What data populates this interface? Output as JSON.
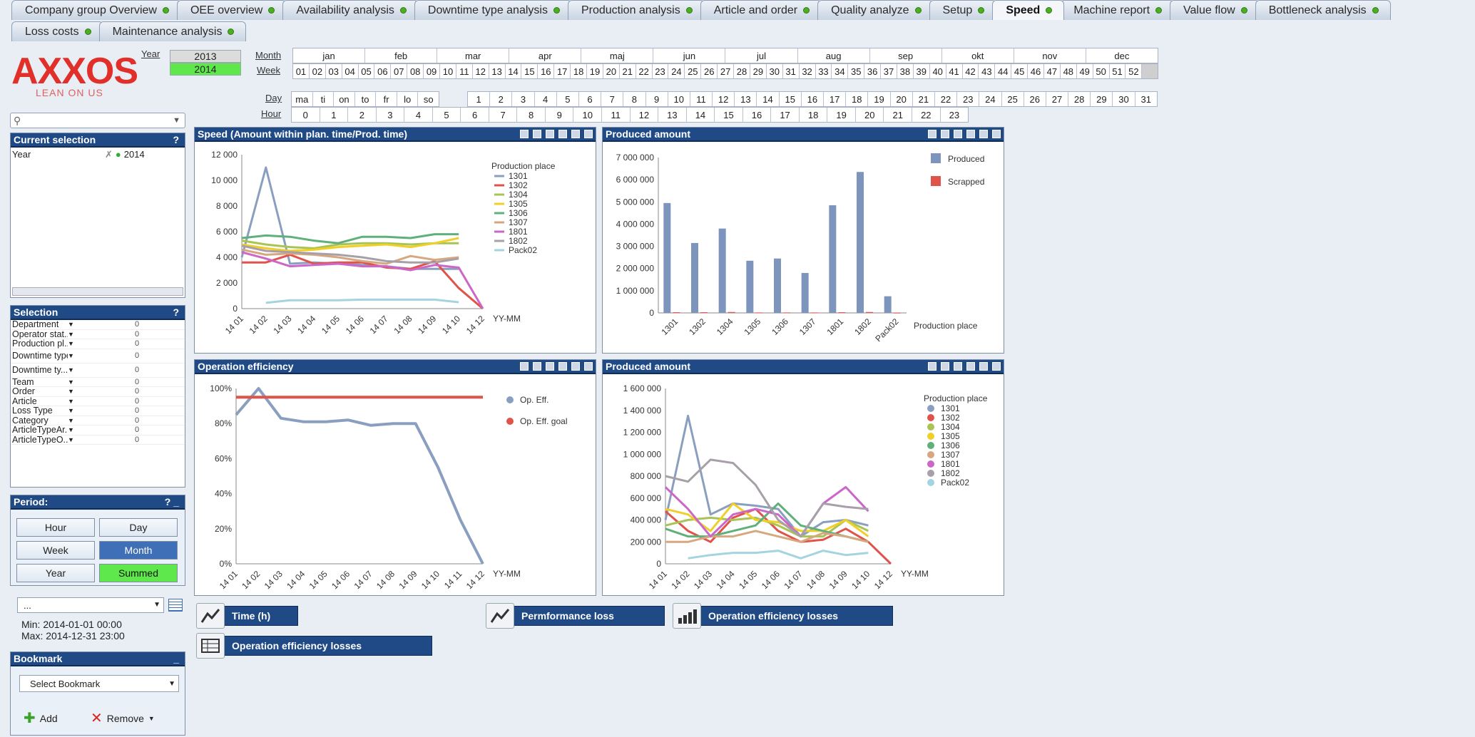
{
  "tabs_row1": [
    {
      "label": "Company group Overview",
      "active": false
    },
    {
      "label": "OEE overview",
      "active": false
    },
    {
      "label": "Availability analysis",
      "active": false
    },
    {
      "label": "Downtime type analysis",
      "active": false
    },
    {
      "label": "Production analysis",
      "active": false
    },
    {
      "label": "Article and order",
      "active": false
    },
    {
      "label": "Quality analyze",
      "active": false
    },
    {
      "label": "Setup",
      "active": false
    },
    {
      "label": "Speed",
      "active": true
    },
    {
      "label": "Machine report",
      "active": false
    },
    {
      "label": "Value flow",
      "active": false
    },
    {
      "label": "Bottleneck analysis",
      "active": false
    }
  ],
  "tabs_row2": [
    {
      "label": "Loss costs"
    },
    {
      "label": "Maintenance analysis"
    }
  ],
  "logo": {
    "text": "AXXOS",
    "tagline": "LEAN ON US"
  },
  "filters": {
    "year_label": "Year",
    "years": [
      "2013",
      "2014"
    ],
    "selected_year": "2014",
    "month_label": "Month",
    "months": [
      "jan",
      "feb",
      "mar",
      "apr",
      "maj",
      "jun",
      "jul",
      "aug",
      "sep",
      "okt",
      "nov",
      "dec"
    ],
    "week_label": "Week",
    "weeks": [
      "01",
      "02",
      "03",
      "04",
      "05",
      "06",
      "07",
      "08",
      "09",
      "10",
      "11",
      "12",
      "13",
      "14",
      "15",
      "16",
      "17",
      "18",
      "19",
      "20",
      "21",
      "22",
      "23",
      "24",
      "25",
      "26",
      "27",
      "28",
      "29",
      "30",
      "31",
      "32",
      "33",
      "34",
      "35",
      "36",
      "37",
      "38",
      "39",
      "40",
      "41",
      "42",
      "43",
      "44",
      "45",
      "46",
      "47",
      "48",
      "49",
      "50",
      "51",
      "52",
      ""
    ],
    "day_label": "Day",
    "weekdays": [
      "ma",
      "ti",
      "on",
      "to",
      "fr",
      "lo",
      "so"
    ],
    "days": [
      "1",
      "2",
      "3",
      "4",
      "5",
      "6",
      "7",
      "8",
      "9",
      "10",
      "11",
      "12",
      "13",
      "14",
      "15",
      "16",
      "17",
      "18",
      "19",
      "20",
      "21",
      "22",
      "23",
      "24",
      "25",
      "26",
      "27",
      "28",
      "29",
      "30",
      "31"
    ],
    "hour_label": "Hour",
    "hours": [
      "0",
      "1",
      "2",
      "3",
      "4",
      "5",
      "6",
      "7",
      "8",
      "9",
      "10",
      "11",
      "12",
      "13",
      "14",
      "15",
      "16",
      "17",
      "18",
      "19",
      "20",
      "21",
      "22",
      "23"
    ]
  },
  "search": {
    "placeholder": ""
  },
  "current_selection": {
    "title": "Current selection",
    "help": "?",
    "field": "Year",
    "value": "2014"
  },
  "selection_panel": {
    "title": "Selection",
    "help": "?",
    "rows": [
      "Department",
      "Operator stat...",
      "Production pl...",
      "Downtime type",
      "Downtime ty...",
      "Team",
      "Order",
      "Article",
      "Loss Type",
      "Category",
      "ArticleTypeAr...",
      "ArticleTypeO..."
    ],
    "placeholder_value": "0"
  },
  "period": {
    "title": "Period:",
    "help": "? _",
    "buttons": [
      "Hour",
      "Day",
      "Week",
      "Month",
      "Year",
      "Summed"
    ],
    "active": "Month",
    "green": "Summed"
  },
  "date_range": {
    "dropdown": "...",
    "min": "Min: 2014-01-01 00:00",
    "max": "Max: 2014-12-31 23:00"
  },
  "bookmark": {
    "title": "Bookmark",
    "select": "Select Bookmark",
    "add": "Add",
    "remove": "Remove"
  },
  "charts": {
    "speed_title": "Speed (Amount within plan. time/Prod. time)",
    "produced_title": "Produced amount",
    "opeff_title": "Operation efficiency",
    "produced2_title": "Produced amount"
  },
  "bottom_buttons": {
    "time": "Time (h)",
    "perf": "Permformance loss",
    "oel1": "Operation efficiency losses",
    "oel2": "Operation efficiency losses"
  },
  "chart_data": [
    {
      "type": "line",
      "title": "Speed (Amount within plan. time/Prod. time)",
      "xlabel": "YY-MM",
      "legend_title": "Production place",
      "x": [
        "14 01",
        "14 02",
        "14 03",
        "14 04",
        "14 05",
        "14 06",
        "14 07",
        "14 08",
        "14 09",
        "14 10",
        "14 12"
      ],
      "ylim": [
        0,
        12000
      ],
      "yticks": [
        0,
        2000,
        4000,
        6000,
        8000,
        10000,
        12000
      ],
      "series": [
        {
          "name": "1301",
          "color": "#8a9fc0",
          "values": [
            4000,
            11000,
            3500,
            3600,
            3500,
            3400,
            3300,
            3100,
            3100,
            3100,
            null
          ]
        },
        {
          "name": "1302",
          "color": "#e0534a",
          "values": [
            3600,
            3600,
            4200,
            3500,
            3600,
            3600,
            3200,
            3100,
            3700,
            1600,
            0
          ]
        },
        {
          "name": "1304",
          "color": "#a9c454",
          "values": [
            5300,
            5000,
            4800,
            4700,
            5000,
            5100,
            5100,
            5000,
            5100,
            5100,
            null
          ]
        },
        {
          "name": "1305",
          "color": "#f0d028",
          "values": [
            5000,
            4700,
            4500,
            4600,
            4800,
            4900,
            5000,
            4800,
            5100,
            5500,
            null
          ]
        },
        {
          "name": "1306",
          "color": "#5fb07a",
          "values": [
            5500,
            5700,
            5600,
            5300,
            5100,
            5600,
            5600,
            5500,
            5800,
            5800,
            null
          ]
        },
        {
          "name": "1307",
          "color": "#d7a780",
          "values": [
            4600,
            4200,
            4300,
            4200,
            4000,
            3700,
            3500,
            4100,
            3800,
            4000,
            null
          ]
        },
        {
          "name": "1801",
          "color": "#cc66c8",
          "values": [
            4400,
            3900,
            3300,
            3400,
            3500,
            3300,
            3300,
            3000,
            3400,
            3200,
            0
          ]
        },
        {
          "name": "1802",
          "color": "#a7a0a8",
          "values": [
            4900,
            4500,
            4400,
            4300,
            4200,
            4000,
            3700,
            3600,
            3600,
            3900,
            null
          ]
        },
        {
          "name": "Pack02",
          "color": "#a3d4e0",
          "values": [
            null,
            450,
            650,
            650,
            650,
            700,
            700,
            700,
            700,
            500,
            null
          ]
        }
      ]
    },
    {
      "type": "bar",
      "title": "Produced amount",
      "xlabel": "Production place",
      "categories": [
        "1301",
        "1302",
        "1304",
        "1305",
        "1306",
        "1307",
        "1801",
        "1802",
        "Pack02"
      ],
      "ylim": [
        0,
        7000000
      ],
      "yticks": [
        0,
        1000000,
        2000000,
        3000000,
        4000000,
        5000000,
        6000000,
        7000000
      ],
      "series": [
        {
          "name": "Produced",
          "color": "#7d95bd",
          "values": [
            4950000,
            3150000,
            3800000,
            2350000,
            2450000,
            1800000,
            4850000,
            6350000,
            750000
          ]
        },
        {
          "name": "Scrapped",
          "color": "#e0534a",
          "values": [
            30000,
            30000,
            40000,
            20000,
            20000,
            20000,
            30000,
            40000,
            10000
          ]
        }
      ]
    },
    {
      "type": "line",
      "title": "Operation efficiency",
      "xlabel": "YY-MM",
      "x": [
        "14 01",
        "14 02",
        "14 03",
        "14 04",
        "14 05",
        "14 06",
        "14 07",
        "14 08",
        "14 09",
        "14 10",
        "14 11",
        "14 12"
      ],
      "ylim": [
        0,
        100
      ],
      "yticks": [
        0,
        20,
        40,
        60,
        80,
        100
      ],
      "yformat": "percent",
      "series": [
        {
          "name": "Op. Eff.",
          "color": "#8a9fc0",
          "values": [
            85,
            100,
            83,
            81,
            81,
            82,
            79,
            80,
            80,
            55,
            25,
            0
          ]
        },
        {
          "name": "Op. Eff. goal",
          "color": "#e0534a",
          "values": [
            95,
            95,
            95,
            95,
            95,
            95,
            95,
            95,
            95,
            95,
            95,
            95
          ]
        }
      ]
    },
    {
      "type": "line",
      "title": "Produced amount",
      "xlabel": "YY-MM",
      "legend_title": "Production place",
      "x": [
        "14 01",
        "14 02",
        "14 03",
        "14 04",
        "14 05",
        "14 06",
        "14 07",
        "14 08",
        "14 09",
        "14 10",
        "14 12"
      ],
      "ylim": [
        0,
        1600000
      ],
      "yticks": [
        0,
        200000,
        400000,
        600000,
        800000,
        1000000,
        1200000,
        1400000,
        1600000
      ],
      "series": [
        {
          "name": "1301",
          "color": "#8a9fc0",
          "values": [
            400000,
            1350000,
            450000,
            550000,
            530000,
            500000,
            250000,
            380000,
            400000,
            350000,
            null
          ]
        },
        {
          "name": "1302",
          "color": "#e0534a",
          "values": [
            480000,
            300000,
            200000,
            420000,
            500000,
            300000,
            200000,
            220000,
            320000,
            200000,
            0
          ]
        },
        {
          "name": "1304",
          "color": "#a9c454",
          "values": [
            350000,
            400000,
            420000,
            400000,
            420000,
            350000,
            250000,
            250000,
            400000,
            300000,
            null
          ]
        },
        {
          "name": "1305",
          "color": "#f0d028",
          "values": [
            500000,
            450000,
            300000,
            550000,
            400000,
            380000,
            300000,
            300000,
            400000,
            250000,
            null
          ]
        },
        {
          "name": "1306",
          "color": "#5fb07a",
          "values": [
            320000,
            250000,
            250000,
            300000,
            350000,
            550000,
            350000,
            300000,
            250000,
            200000,
            null
          ]
        },
        {
          "name": "1307",
          "color": "#d7a780",
          "values": [
            200000,
            200000,
            250000,
            250000,
            300000,
            250000,
            200000,
            280000,
            250000,
            200000,
            null
          ]
        },
        {
          "name": "1801",
          "color": "#cc66c8",
          "values": [
            700000,
            500000,
            250000,
            450000,
            500000,
            450000,
            250000,
            550000,
            700000,
            480000,
            null
          ]
        },
        {
          "name": "1802",
          "color": "#a7a0a8",
          "values": [
            800000,
            750000,
            950000,
            920000,
            720000,
            400000,
            250000,
            550000,
            520000,
            500000,
            null
          ]
        },
        {
          "name": "Pack02",
          "color": "#a3d4e0",
          "values": [
            null,
            50000,
            80000,
            100000,
            100000,
            120000,
            50000,
            120000,
            80000,
            100000,
            null
          ]
        }
      ]
    }
  ]
}
